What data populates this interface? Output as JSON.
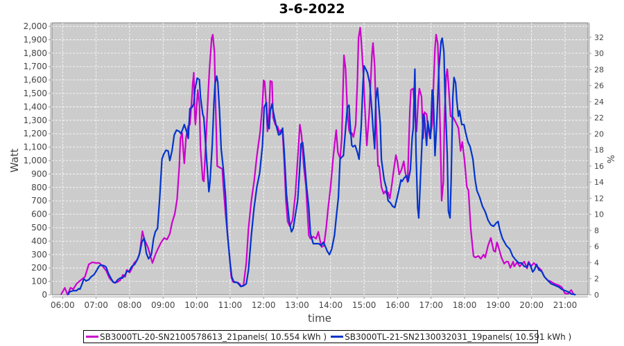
{
  "chart_data": {
    "type": "line",
    "title": "3-6-2022",
    "xlabel": "time",
    "ylabel": "Watt",
    "y2label": "%",
    "x_units": "minutes since midnight",
    "xlim": [
      341,
      1301
    ],
    "ylim": [
      0,
      2026
    ],
    "y2lim": [
      0,
      33.8
    ],
    "grid": true,
    "legend_position": "bottom",
    "x_ticks": [
      {
        "value": 360,
        "label": "06:00"
      },
      {
        "value": 420,
        "label": "07:00"
      },
      {
        "value": 480,
        "label": "08:00"
      },
      {
        "value": 540,
        "label": "09:00"
      },
      {
        "value": 600,
        "label": "10:00"
      },
      {
        "value": 660,
        "label": "11:00"
      },
      {
        "value": 720,
        "label": "12:00"
      },
      {
        "value": 780,
        "label": "13:00"
      },
      {
        "value": 840,
        "label": "14:00"
      },
      {
        "value": 900,
        "label": "15:00"
      },
      {
        "value": 960,
        "label": "16:00"
      },
      {
        "value": 1020,
        "label": "17:00"
      },
      {
        "value": 1080,
        "label": "18:00"
      },
      {
        "value": 1140,
        "label": "19:00"
      },
      {
        "value": 1200,
        "label": "20:00"
      },
      {
        "value": 1260,
        "label": "21:00"
      }
    ],
    "y_ticks": [
      {
        "value": 0,
        "label": "0"
      },
      {
        "value": 100,
        "label": "100"
      },
      {
        "value": 200,
        "label": "200"
      },
      {
        "value": 300,
        "label": "300"
      },
      {
        "value": 400,
        "label": "400"
      },
      {
        "value": 500,
        "label": "500"
      },
      {
        "value": 600,
        "label": "600"
      },
      {
        "value": 700,
        "label": "700"
      },
      {
        "value": 800,
        "label": "800"
      },
      {
        "value": 900,
        "label": "900"
      },
      {
        "value": 1000,
        "label": "1,000"
      },
      {
        "value": 1100,
        "label": "1,100"
      },
      {
        "value": 1200,
        "label": "1,200"
      },
      {
        "value": 1300,
        "label": "1,300"
      },
      {
        "value": 1400,
        "label": "1,400"
      },
      {
        "value": 1500,
        "label": "1,500"
      },
      {
        "value": 1600,
        "label": "1,600"
      },
      {
        "value": 1700,
        "label": "1,700"
      },
      {
        "value": 1800,
        "label": "1,800"
      },
      {
        "value": 1900,
        "label": "1,900"
      },
      {
        "value": 2000,
        "label": "2,000"
      }
    ],
    "y2_ticks": [
      {
        "value": 0,
        "label": "0"
      },
      {
        "value": 2,
        "label": "2"
      },
      {
        "value": 4,
        "label": "4"
      },
      {
        "value": 6,
        "label": "6"
      },
      {
        "value": 8,
        "label": "8"
      },
      {
        "value": 10,
        "label": "10"
      },
      {
        "value": 12,
        "label": "12"
      },
      {
        "value": 14,
        "label": "14"
      },
      {
        "value": 16,
        "label": "16"
      },
      {
        "value": 18,
        "label": "18"
      },
      {
        "value": 20,
        "label": "20"
      },
      {
        "value": 22,
        "label": "22"
      },
      {
        "value": 24,
        "label": "24"
      },
      {
        "value": 26,
        "label": "26"
      },
      {
        "value": 28,
        "label": "28"
      },
      {
        "value": 30,
        "label": "30"
      },
      {
        "value": 32,
        "label": "32"
      }
    ],
    "series": [
      {
        "name": "SB3000TL-20-SN2100578613_21panels( 10.554 kWh )",
        "color": "#cc00cc",
        "x": [
          357,
          364,
          369,
          374,
          379,
          385,
          392,
          400,
          407,
          413,
          420,
          426,
          432,
          438,
          444,
          451,
          457,
          463,
          468,
          472,
          475,
          480,
          484,
          488,
          493,
          497,
          499,
          503,
          506,
          513,
          518,
          521,
          526,
          531,
          536,
          542,
          547,
          552,
          556,
          561,
          565,
          569,
          571,
          574,
          576,
          578,
          581,
          585,
          588,
          592,
          593,
          595,
          597,
          598,
          602,
          605,
          607,
          611,
          613,
          617,
          621,
          623,
          627,
          629,
          632,
          634,
          637,
          641,
          646,
          648,
          652,
          655,
          659,
          662,
          665,
          673,
          677,
          680,
          684,
          689,
          693,
          698,
          703,
          708,
          714,
          718,
          720,
          722,
          725,
          727,
          730,
          732,
          735,
          737,
          741,
          745,
          749,
          751,
          754,
          757,
          760,
          763,
          767,
          772,
          777,
          781,
          785,
          788,
          792,
          796,
          798,
          801,
          804,
          809,
          814,
          818,
          821,
          824,
          828,
          832,
          835,
          840,
          845,
          850,
          853,
          857,
          860,
          864,
          867,
          870,
          873,
          875,
          878,
          881,
          885,
          888,
          890,
          893,
          895,
          899,
          902,
          905,
          909,
          914,
          916,
          919,
          922,
          925,
          927,
          931,
          935,
          938,
          941,
          943,
          946,
          950,
          952,
          957,
          960,
          963,
          967,
          971,
          974,
          978,
          982,
          984,
          988,
          992,
          994,
          997,
          999,
          1003,
          1006,
          1008,
          1012,
          1014,
          1018,
          1022,
          1024,
          1027,
          1029,
          1032,
          1034,
          1037,
          1039,
          1042,
          1044,
          1047,
          1049,
          1051,
          1055,
          1060,
          1065,
          1069,
          1073,
          1076,
          1080,
          1084,
          1087,
          1091,
          1096,
          1099,
          1105,
          1109,
          1114,
          1117,
          1122,
          1127,
          1132,
          1135,
          1138,
          1141,
          1146,
          1151,
          1155,
          1158,
          1162,
          1167,
          1169,
          1174,
          1179,
          1182,
          1187,
          1192,
          1195,
          1199,
          1204,
          1210,
          1217,
          1223,
          1229,
          1235,
          1241,
          1248,
          1254,
          1260,
          1266,
          1271,
          1276
        ],
        "y": [
          0,
          52,
          0,
          52,
          41,
          82,
          108,
          134,
          227,
          242,
          237,
          237,
          211,
          180,
          124,
          93,
          93,
          108,
          149,
          134,
          186,
          165,
          196,
          237,
          258,
          294,
          340,
          474,
          418,
          351,
          278,
          237,
          299,
          345,
          387,
          423,
          412,
          454,
          536,
          603,
          711,
          959,
          1165,
          1206,
          1088,
          979,
          1170,
          1258,
          1268,
          1490,
          1567,
          1655,
          1320,
          1268,
          1526,
          1423,
          1088,
          856,
          845,
          1165,
          1526,
          1681,
          1912,
          1938,
          1809,
          1423,
          959,
          949,
          938,
          804,
          598,
          469,
          289,
          134,
          98,
          93,
          82,
          62,
          72,
          237,
          495,
          701,
          845,
          1036,
          1217,
          1423,
          1598,
          1588,
          1397,
          1217,
          1361,
          1593,
          1588,
          1320,
          1268,
          1253,
          1206,
          1227,
          1206,
          985,
          701,
          546,
          510,
          557,
          753,
          1010,
          1268,
          1191,
          959,
          804,
          650,
          443,
          418,
          433,
          418,
          469,
          407,
          356,
          366,
          495,
          624,
          804,
          1036,
          1227,
          1062,
          1016,
          1165,
          1784,
          1681,
          1371,
          1227,
          1201,
          1206,
          1175,
          1268,
          1577,
          1912,
          1990,
          1887,
          1629,
          1345,
          1113,
          1345,
          1784,
          1876,
          1706,
          1268,
          959,
          959,
          804,
          753,
          773,
          747,
          763,
          717,
          830,
          897,
          1041,
          985,
          897,
          933,
          995,
          907,
          840,
          1371,
          1526,
          1536,
          1294,
          1217,
          1449,
          1536,
          1474,
          1165,
          1361,
          1345,
          1268,
          1165,
          1268,
          1526,
          1835,
          1938,
          1871,
          1629,
          1113,
          701,
          845,
          1320,
          1629,
          1681,
          1577,
          1330,
          1320,
          1278,
          1242,
          1072,
          1139,
          1000,
          804,
          778,
          495,
          289,
          278,
          289,
          268,
          299,
          278,
          366,
          423,
          330,
          320,
          392,
          351,
          278,
          232,
          247,
          247,
          201,
          247,
          211,
          242,
          211,
          227,
          247,
          196,
          247,
          211,
          237,
          211,
          186,
          134,
          108,
          98,
          82,
          72,
          57,
          10,
          10,
          36,
          0
        ]
      },
      {
        "name": "SB3000TL-21-SN2130032031_19panels( 10.591 kWh )",
        "color": "#0033cc",
        "x": [
          370,
          372,
          379,
          385,
          389,
          391,
          395,
          398,
          402,
          407,
          411,
          416,
          420,
          425,
          428,
          434,
          438,
          442,
          447,
          451,
          454,
          459,
          463,
          467,
          472,
          475,
          479,
          484,
          489,
          494,
          498,
          502,
          506,
          510,
          514,
          519,
          523,
          526,
          530,
          534,
          538,
          541,
          545,
          549,
          552,
          556,
          560,
          564,
          569,
          572,
          575,
          578,
          582,
          585,
          588,
          592,
          595,
          597,
          601,
          605,
          607,
          611,
          613,
          618,
          622,
          624,
          628,
          631,
          633,
          636,
          638,
          641,
          644,
          648,
          652,
          655,
          660,
          663,
          667,
          672,
          675,
          679,
          684,
          689,
          693,
          698,
          703,
          708,
          713,
          718,
          721,
          725,
          727,
          730,
          732,
          735,
          737,
          742,
          747,
          750,
          754,
          757,
          761,
          766,
          770,
          773,
          777,
          781,
          785,
          787,
          790,
          793,
          797,
          801,
          804,
          809,
          814,
          819,
          823,
          827,
          830,
          834,
          838,
          842,
          847,
          850,
          854,
          857,
          860,
          863,
          866,
          870,
          873,
          875,
          878,
          880,
          884,
          888,
          891,
          895,
          898,
          900,
          903,
          906,
          910,
          914,
          916,
          919,
          921,
          924,
          926,
          929,
          931,
          936,
          940,
          943,
          947,
          951,
          955,
          958,
          962,
          966,
          968,
          972,
          976,
          979,
          983,
          986,
          988,
          991,
          993,
          996,
          998,
          1002,
          1006,
          1008,
          1012,
          1014,
          1019,
          1022,
          1024,
          1027,
          1030,
          1034,
          1038,
          1040,
          1043,
          1045,
          1049,
          1051,
          1054,
          1056,
          1059,
          1061,
          1064,
          1066,
          1069,
          1071,
          1075,
          1079,
          1082,
          1086,
          1090,
          1095,
          1099,
          1102,
          1107,
          1112,
          1117,
          1122,
          1127,
          1132,
          1137,
          1140,
          1143,
          1148,
          1155,
          1161,
          1166,
          1171,
          1177,
          1182,
          1187,
          1192,
          1194,
          1198,
          1202,
          1205,
          1209,
          1213,
          1218,
          1223,
          1229,
          1235,
          1241,
          1249,
          1254,
          1260,
          1266,
          1272,
          1279
        ],
        "y": [
          0,
          21,
          31,
          31,
          46,
          41,
          82,
          119,
          103,
          113,
          134,
          149,
          175,
          211,
          222,
          217,
          206,
          160,
          119,
          93,
          88,
          113,
          124,
          124,
          149,
          175,
          175,
          211,
          227,
          263,
          309,
          392,
          423,
          309,
          268,
          299,
          418,
          469,
          495,
          727,
          1010,
          1046,
          1077,
          1072,
          1000,
          1072,
          1191,
          1227,
          1217,
          1201,
          1232,
          1268,
          1217,
          1165,
          1387,
          1397,
          1423,
          1526,
          1614,
          1603,
          1474,
          1345,
          1320,
          1010,
          768,
          845,
          1113,
          1423,
          1567,
          1629,
          1588,
          1371,
          1088,
          933,
          727,
          469,
          237,
          134,
          93,
          93,
          82,
          62,
          67,
          82,
          186,
          443,
          650,
          804,
          907,
          1113,
          1397,
          1433,
          1268,
          1237,
          1371,
          1423,
          1371,
          1268,
          1191,
          1196,
          1242,
          1062,
          753,
          546,
          469,
          495,
          598,
          701,
          959,
          1124,
          1134,
          1010,
          804,
          650,
          454,
          381,
          381,
          381,
          366,
          392,
          366,
          325,
          299,
          340,
          443,
          572,
          727,
          1010,
          1026,
          1036,
          1191,
          1397,
          1412,
          1268,
          1113,
          1103,
          1113,
          1062,
          1010,
          1268,
          1577,
          1706,
          1681,
          1655,
          1577,
          1371,
          1242,
          1088,
          1449,
          1541,
          1433,
          1268,
          1010,
          856,
          794,
          701,
          686,
          660,
          650,
          701,
          773,
          856,
          845,
          871,
          887,
          845,
          933,
          1165,
          1242,
          1681,
          1062,
          650,
          572,
          959,
          1345,
          1320,
          1113,
          1294,
          1165,
          1526,
          1474,
          1036,
          1268,
          1681,
          1887,
          1912,
          1809,
          1474,
          1036,
          624,
          572,
          856,
          1474,
          1619,
          1577,
          1449,
          1330,
          1371,
          1268,
          1268,
          1206,
          1139,
          1103,
          1010,
          856,
          778,
          727,
          660,
          619,
          557,
          521,
          510,
          536,
          546,
          485,
          418,
          366,
          340,
          289,
          263,
          237,
          237,
          211,
          206,
          237,
          217,
          170,
          186,
          227,
          186,
          175,
          134,
          108,
          82,
          72,
          57,
          41,
          31,
          21,
          5,
          0
        ]
      }
    ]
  }
}
